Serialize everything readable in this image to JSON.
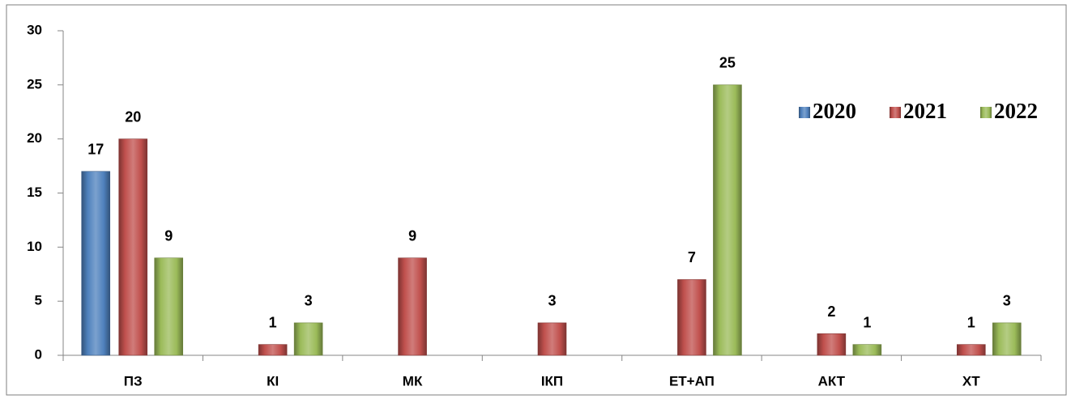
{
  "chart_data": {
    "type": "bar",
    "categories": [
      "ПЗ",
      "КІ",
      "МК",
      "ІКП",
      "ЕТ+АП",
      "АКТ",
      "ХТ"
    ],
    "series": [
      {
        "name": "2020",
        "color": "#4f81bd",
        "values": [
          17,
          null,
          null,
          null,
          null,
          null,
          null
        ]
      },
      {
        "name": "2021",
        "color": "#c0504d",
        "values": [
          20,
          1,
          9,
          3,
          7,
          2,
          1
        ]
      },
      {
        "name": "2022",
        "color": "#9bbb59",
        "values": [
          9,
          3,
          null,
          null,
          25,
          1,
          3
        ]
      }
    ],
    "ylim": [
      0,
      30
    ],
    "yticks": [
      0,
      5,
      10,
      15,
      20,
      25,
      30
    ],
    "grid": false,
    "legend": "upper right"
  }
}
